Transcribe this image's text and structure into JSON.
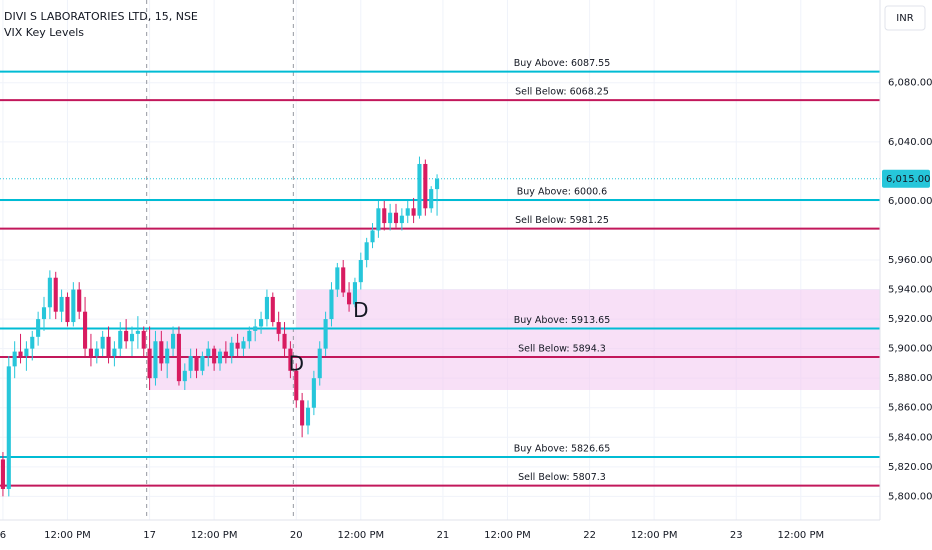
{
  "chart_data": {
    "type": "candlestick",
    "title": "DIVI S LABORATORIES LTD, 15, NSE",
    "subtitle": "VIX Key Levels",
    "currency": "INR",
    "up_color": "#26c6da",
    "down_color": "#d81b60",
    "open": [
      5825,
      5805,
      5888,
      5898,
      5895,
      5900,
      5908,
      5920,
      5928,
      5948,
      5925,
      5935,
      5918,
      5940,
      5925,
      5900,
      5895,
      5900,
      5908,
      5895,
      5900,
      5912,
      5905,
      5910,
      5912,
      5900,
      5880,
      5905,
      5890,
      5900,
      5910,
      5878,
      5885,
      5895,
      5885,
      5895,
      5900,
      5890,
      5898,
      5895,
      5904,
      5900,
      5905,
      5912,
      5915,
      5920,
      5935,
      5918,
      5910,
      5900,
      5885,
      5865,
      5848,
      5860,
      5880,
      5900,
      5920,
      5940,
      5955,
      5938,
      5930,
      5945,
      5960,
      5972,
      5980,
      5995,
      5985,
      5992,
      5985,
      5990,
      5995,
      5990,
      6025,
      5995,
      6008
    ],
    "high": [
      5830,
      5895,
      5905,
      5910,
      5905,
      5912,
      5925,
      5935,
      5953,
      5952,
      5940,
      5938,
      5945,
      5945,
      5935,
      5910,
      5905,
      5912,
      5915,
      5905,
      5918,
      5920,
      5915,
      5922,
      5915,
      5915,
      5912,
      5912,
      5905,
      5915,
      5915,
      5890,
      5900,
      5900,
      5898,
      5905,
      5902,
      5900,
      5905,
      5908,
      5910,
      5908,
      5915,
      5920,
      5925,
      5940,
      5938,
      5925,
      5918,
      5905,
      5890,
      5870,
      5865,
      5885,
      5905,
      5925,
      5945,
      5958,
      5960,
      5945,
      5948,
      5965,
      5975,
      5985,
      6000,
      6000,
      5998,
      5998,
      5995,
      6000,
      6002,
      6030,
      6028,
      6010,
      6018
    ],
    "low": [
      5800,
      5800,
      5880,
      5890,
      5885,
      5892,
      5902,
      5912,
      5920,
      5920,
      5918,
      5915,
      5915,
      5920,
      5895,
      5888,
      5890,
      5895,
      5890,
      5888,
      5895,
      5900,
      5895,
      5900,
      5895,
      5872,
      5875,
      5885,
      5880,
      5895,
      5875,
      5872,
      5880,
      5880,
      5882,
      5888,
      5885,
      5885,
      5890,
      5890,
      5895,
      5895,
      5900,
      5905,
      5910,
      5915,
      5915,
      5905,
      5895,
      5880,
      5860,
      5840,
      5842,
      5855,
      5875,
      5895,
      5915,
      5935,
      5935,
      5925,
      5928,
      5940,
      5955,
      5968,
      5975,
      5980,
      5980,
      5982,
      5980,
      5985,
      5985,
      5988,
      5990,
      5992,
      5990
    ],
    "close": [
      5805,
      5888,
      5898,
      5895,
      5900,
      5908,
      5920,
      5928,
      5948,
      5925,
      5935,
      5918,
      5940,
      5925,
      5900,
      5895,
      5900,
      5908,
      5895,
      5900,
      5912,
      5905,
      5910,
      5912,
      5900,
      5880,
      5905,
      5890,
      5900,
      5910,
      5878,
      5885,
      5895,
      5885,
      5895,
      5900,
      5890,
      5898,
      5895,
      5904,
      5900,
      5905,
      5912,
      5915,
      5920,
      5935,
      5918,
      5910,
      5900,
      5885,
      5865,
      5848,
      5860,
      5880,
      5900,
      5920,
      5940,
      5955,
      5938,
      5930,
      5945,
      5960,
      5972,
      5980,
      5995,
      5985,
      5992,
      5985,
      5990,
      5995,
      5990,
      6025,
      5995,
      6008,
      6015
    ],
    "levels": [
      {
        "value": 6087.55,
        "label": "Buy Above: 6087.55",
        "color": "#00bcd4"
      },
      {
        "value": 6068.25,
        "label": "Sell Below: 6068.25",
        "color": "#c2185b"
      },
      {
        "value": 6000.6,
        "label": "Buy Above: 6000.6",
        "color": "#00bcd4"
      },
      {
        "value": 5981.25,
        "label": "Sell Below: 5981.25",
        "color": "#c2185b"
      },
      {
        "value": 5913.65,
        "label": "Buy Above: 5913.65",
        "color": "#00bcd4"
      },
      {
        "value": 5894.3,
        "label": "Sell Below: 5894.3",
        "color": "#c2185b"
      },
      {
        "value": 5826.65,
        "label": "Buy Above: 5826.65",
        "color": "#00bcd4"
      },
      {
        "value": 5807.3,
        "label": "Sell Below: 5807.3",
        "color": "#c2185b"
      }
    ],
    "zones": [
      {
        "start": 25,
        "end": 50,
        "top": 5913.65,
        "bottom": 5872,
        "color": "#f3c6f0"
      },
      {
        "start": 50,
        "end": 149.5,
        "top": 5940,
        "bottom": 5872,
        "color": "#f3c6f0"
      }
    ],
    "annotations": [
      {
        "text": "D",
        "x": 50,
        "y": 5889,
        "color": "#e040fb"
      },
      {
        "text": "D",
        "x": 61,
        "y": 5925,
        "color": "#e040fb"
      }
    ],
    "last_price": {
      "value": 6015,
      "label": "6,015.00"
    },
    "session_breaks": [
      25,
      50
    ],
    "xlim": [
      -0.5,
      149.5
    ],
    "ylim": [
      5784,
      6136
    ],
    "xticks": [
      {
        "value": 0,
        "label": "6"
      },
      {
        "value": 11,
        "label": "12:00 PM"
      },
      {
        "value": 25,
        "label": "17"
      },
      {
        "value": 36,
        "label": "12:00 PM"
      },
      {
        "value": 50,
        "label": "20"
      },
      {
        "value": 61,
        "label": "12:00 PM"
      },
      {
        "value": 75,
        "label": "21"
      },
      {
        "value": 86,
        "label": "12:00 PM"
      },
      {
        "value": 100,
        "label": "22"
      },
      {
        "value": 111,
        "label": "12:00 PM"
      },
      {
        "value": 125,
        "label": "23"
      },
      {
        "value": 136,
        "label": "12:00 PM"
      }
    ],
    "yticks": [
      {
        "value": 6080,
        "label": "6,080.00"
      },
      {
        "value": 6040,
        "label": "6,040.00"
      },
      {
        "value": 6000,
        "label": "6,000.00"
      },
      {
        "value": 5960,
        "label": "5,960.00"
      },
      {
        "value": 5940,
        "label": "5,940.00"
      },
      {
        "value": 5920,
        "label": "5,920.00"
      },
      {
        "value": 5900,
        "label": "5,900.00"
      },
      {
        "value": 5880,
        "label": "5,880.00"
      },
      {
        "value": 5860,
        "label": "5,860.00"
      },
      {
        "value": 5840,
        "label": "5,840.00"
      },
      {
        "value": 5820,
        "label": "5,820.00"
      },
      {
        "value": 5800,
        "label": "5,800.00"
      }
    ],
    "grid": true
  }
}
